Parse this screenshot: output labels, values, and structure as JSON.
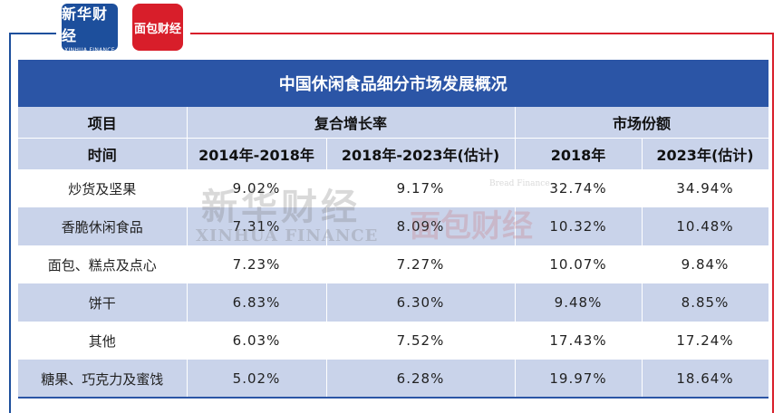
{
  "brand": {
    "left_logo_cn": "新华财经",
    "left_logo_en": "XINHUA FINANCE",
    "right_logo": "面包财经"
  },
  "table": {
    "title": "中国休闲食品细分市场发展概况",
    "header1": {
      "item": "项目",
      "cagr": "复合增长率",
      "share": "市场份额"
    },
    "header2": {
      "time": "时间",
      "c1": "2014年-2018年",
      "c2": "2018年-2023年(估计)",
      "c3": "2018年",
      "c4": "2023年(估计)"
    },
    "rows": [
      {
        "name": "炒货及坚果",
        "v1": "9.02%",
        "v2": "9.17%",
        "v3": "32.74%",
        "v4": "34.94%"
      },
      {
        "name": "香脆休闲食品",
        "v1": "7.31%",
        "v2": "8.09%",
        "v3": "10.32%",
        "v4": "10.48%"
      },
      {
        "name": "面包、糕点及点心",
        "v1": "7.23%",
        "v2": "7.27%",
        "v3": "10.07%",
        "v4": "9.84%"
      },
      {
        "name": "饼干",
        "v1": "6.83%",
        "v2": "6.30%",
        "v3": "9.48%",
        "v4": "8.85%"
      },
      {
        "name": "其他",
        "v1": "6.03%",
        "v2": "7.52%",
        "v3": "17.43%",
        "v4": "17.24%"
      },
      {
        "name": "糖果、巧克力及蜜饯",
        "v1": "5.02%",
        "v2": "6.28%",
        "v3": "19.97%",
        "v4": "18.64%"
      }
    ]
  },
  "watermark": {
    "cn": "新华财经",
    "en": "XINHUA FINANCE",
    "red": "面包财经",
    "small": "Bread Finance"
  }
}
